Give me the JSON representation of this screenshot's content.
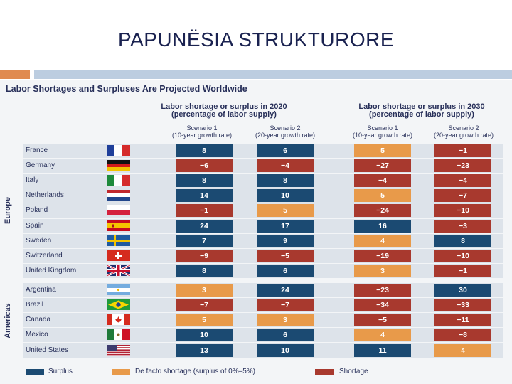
{
  "slide_title": "PAPUNËSIA STRUKTURORE",
  "chart_data": {
    "type": "table",
    "title": "Labor Shortages and Surpluses Are Projected Worldwide",
    "column_groups": [
      {
        "line1": "Labor shortage or surplus in 2020",
        "line2": "(percentage of labor supply)"
      },
      {
        "line1": "Labor shortage or surplus in 2030",
        "line2": "(percentage of labor supply)"
      }
    ],
    "scenarios": [
      {
        "name": "Scenario 1",
        "rate": "(10-year growth rate)"
      },
      {
        "name": "Scenario 2",
        "rate": "(20-year growth rate)"
      },
      {
        "name": "Scenario 1",
        "rate": "(10-year growth rate)"
      },
      {
        "name": "Scenario 2",
        "rate": "(20-year growth rate)"
      }
    ],
    "regions": [
      {
        "name": "Europe",
        "countries": [
          {
            "name": "France",
            "values": [
              8,
              6,
              5,
              -1
            ]
          },
          {
            "name": "Germany",
            "values": [
              -6,
              -4,
              -27,
              -23
            ]
          },
          {
            "name": "Italy",
            "values": [
              8,
              8,
              -4,
              -4
            ]
          },
          {
            "name": "Netherlands",
            "values": [
              14,
              10,
              5,
              -7
            ]
          },
          {
            "name": "Poland",
            "values": [
              -1,
              5,
              -24,
              -10
            ]
          },
          {
            "name": "Spain",
            "values": [
              24,
              17,
              16,
              -3
            ]
          },
          {
            "name": "Sweden",
            "values": [
              7,
              9,
              4,
              8
            ]
          },
          {
            "name": "Switzerland",
            "values": [
              -9,
              -5,
              -19,
              -10
            ]
          },
          {
            "name": "United Kingdom",
            "values": [
              8,
              6,
              3,
              -1
            ]
          }
        ]
      },
      {
        "name": "Americas",
        "countries": [
          {
            "name": "Argentina",
            "values": [
              3,
              24,
              -23,
              30
            ]
          },
          {
            "name": "Brazil",
            "values": [
              -7,
              -7,
              -34,
              -33
            ]
          },
          {
            "name": "Canada",
            "values": [
              5,
              3,
              -5,
              -11
            ]
          },
          {
            "name": "Mexico",
            "values": [
              10,
              6,
              4,
              -8
            ]
          },
          {
            "name": "United States",
            "values": [
              13,
              10,
              11,
              4
            ]
          }
        ]
      }
    ],
    "legend": [
      {
        "label": "Surplus",
        "color": "#1b4a72"
      },
      {
        "label": "De facto shortage (surplus of 0%–5%)",
        "color": "#e89a4a"
      },
      {
        "label": "Shortage",
        "color": "#a8392e"
      }
    ]
  }
}
